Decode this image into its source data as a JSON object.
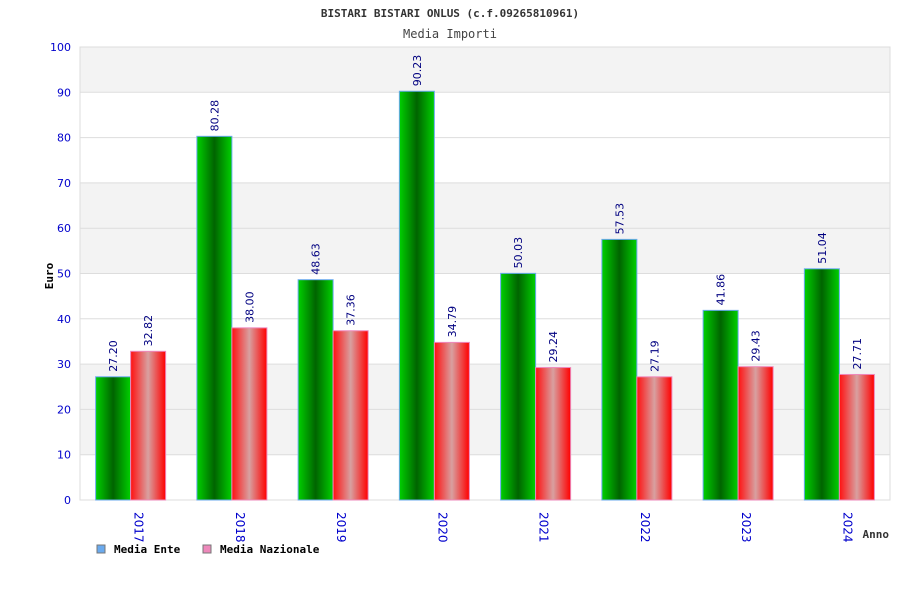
{
  "chart_data": {
    "type": "bar",
    "title": "BISTARI BISTARI ONLUS (c.f.09265810961)",
    "subtitle": "Media Importi",
    "xlabel": "Anno",
    "ylabel": "Euro",
    "ylim": [
      0,
      100
    ],
    "yticks": [
      0,
      10,
      20,
      30,
      40,
      50,
      60,
      70,
      80,
      90,
      100
    ],
    "grid": true,
    "legend_position": "bottom-left",
    "categories": [
      "2017",
      "2018",
      "2019",
      "2020",
      "2021",
      "2022",
      "2023",
      "2024"
    ],
    "series": [
      {
        "name": "Media Ente",
        "color": "#00c000",
        "legend_color": "#6aaaee",
        "values": [
          27.2,
          80.28,
          48.63,
          90.23,
          50.03,
          57.53,
          41.86,
          51.04
        ],
        "labels": [
          "27.20",
          "80.28",
          "48.63",
          "90.23",
          "50.03",
          "57.53",
          "41.86",
          "51.04"
        ]
      },
      {
        "name": "Media Nazionale",
        "color": "#ff0000",
        "legend_color": "#ee88bb",
        "values": [
          32.82,
          38.0,
          37.36,
          34.79,
          29.24,
          27.19,
          29.43,
          27.71
        ],
        "labels": [
          "32.82",
          "38.00",
          "37.36",
          "34.79",
          "29.24",
          "27.19",
          "29.43",
          "27.71"
        ]
      }
    ]
  }
}
